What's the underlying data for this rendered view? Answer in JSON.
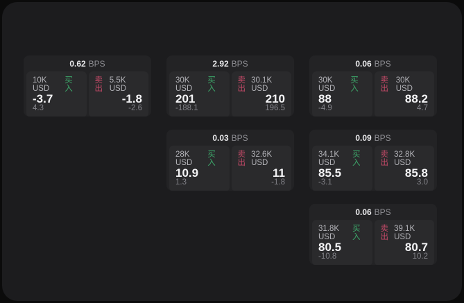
{
  "page": {
    "bps_suffix": "BPS",
    "buy_label": "买入",
    "sell_label": "卖出",
    "colors": {
      "frame_bg": "#0b0b0b",
      "panel_bg": "#1c1c1e",
      "card_bg": "#232325",
      "pane_bg": "#2a2a2c",
      "buy": "#3da76a",
      "sell": "#c64a68"
    }
  },
  "cards": [
    {
      "row": 1,
      "col": 1,
      "bps": "0.62",
      "buy": {
        "size": "10K USD",
        "value": "-3.7",
        "sub": "4.3"
      },
      "sell": {
        "size": "5.5K USD",
        "value": "-1.8",
        "sub": "-2.6"
      }
    },
    {
      "row": 1,
      "col": 2,
      "bps": "2.92",
      "buy": {
        "size": "30K USD",
        "value": "201",
        "sub": "-188.1"
      },
      "sell": {
        "size": "30.1K USD",
        "value": "210",
        "sub": "196.5"
      }
    },
    {
      "row": 1,
      "col": 3,
      "bps": "0.06",
      "buy": {
        "size": "30K USD",
        "value": "88",
        "sub": "-4.9"
      },
      "sell": {
        "size": "30K USD",
        "value": "88.2",
        "sub": "4.7"
      }
    },
    {
      "row": 2,
      "col": 2,
      "bps": "0.03",
      "buy": {
        "size": "28K USD",
        "value": "10.9",
        "sub": "1.3"
      },
      "sell": {
        "size": "32.6K USD",
        "value": "11",
        "sub": "-1.8"
      }
    },
    {
      "row": 2,
      "col": 3,
      "bps": "0.09",
      "buy": {
        "size": "34.1K USD",
        "value": "85.5",
        "sub": "-3.1"
      },
      "sell": {
        "size": "32.8K USD",
        "value": "85.8",
        "sub": "3.0"
      }
    },
    {
      "row": 3,
      "col": 3,
      "bps": "0.06",
      "buy": {
        "size": "31.8K USD",
        "value": "80.5",
        "sub": "-10.8"
      },
      "sell": {
        "size": "39.1K USD",
        "value": "80.7",
        "sub": "10.2"
      }
    }
  ]
}
